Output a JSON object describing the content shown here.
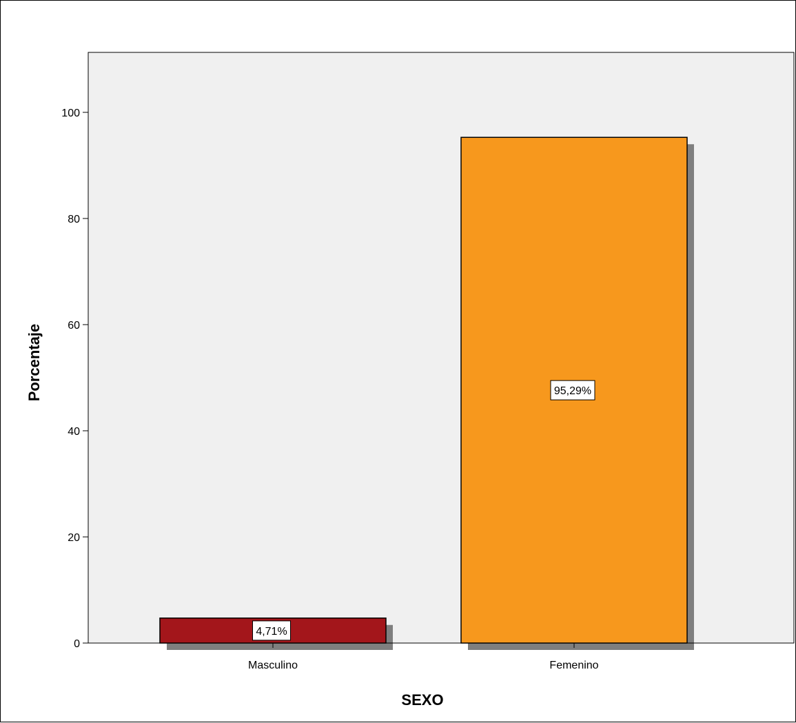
{
  "chart_data": {
    "type": "bar",
    "categories": [
      "Masculino",
      "Femenino"
    ],
    "values": [
      4.71,
      95.29
    ],
    "data_labels": [
      "4,71%",
      "95,29%"
    ],
    "colors": [
      "#a3161b",
      "#f7981d"
    ],
    "xlabel": "SEXO",
    "ylabel": "Porcentaje",
    "ylim": [
      0,
      110
    ],
    "yticks": [
      0,
      20,
      40,
      60,
      80,
      100
    ],
    "ytick_labels": [
      "0",
      "20",
      "40",
      "60",
      "80",
      "100"
    ],
    "plot_background": "#f0f0f0",
    "bar_shadow": true,
    "grid": false,
    "legend": "none"
  }
}
